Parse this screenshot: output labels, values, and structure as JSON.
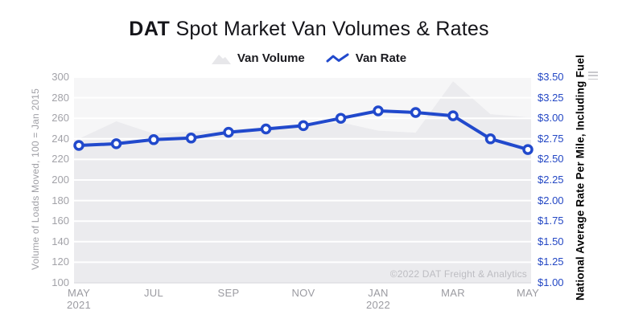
{
  "title": {
    "brand": "DAT",
    "rest": "Spot Market Van Volumes & Rates"
  },
  "legend": [
    {
      "label": "Van Volume",
      "icon": "area-icon"
    },
    {
      "label": "Van Rate",
      "icon": "line-icon"
    }
  ],
  "watermark": "©2022 DAT Freight & Analytics",
  "colors": {
    "rate_line": "#2149cc",
    "rate_axis_text": "#2347c4",
    "volume_fill": "#ebebee",
    "plot_background": "#f6f6f7",
    "gridline": "#ffffff",
    "baseline": "#e0e0e4"
  },
  "chart_data": {
    "type": "line",
    "title": "DAT Spot Market Van Volumes & Rates",
    "x": [
      "MAY 2021",
      "JUN 2021",
      "JUL 2021",
      "AUG 2021",
      "SEP 2021",
      "OCT 2021",
      "NOV 2021",
      "DEC 2021",
      "JAN 2022",
      "FEB 2022",
      "MAR 2022",
      "APR 2022",
      "MAY 2022"
    ],
    "x_tick_labels": [
      {
        "month_index": 0,
        "lines": [
          "MAY",
          "2021"
        ]
      },
      {
        "month_index": 2,
        "lines": [
          "JUL"
        ]
      },
      {
        "month_index": 4,
        "lines": [
          "SEP"
        ]
      },
      {
        "month_index": 6,
        "lines": [
          "NOV"
        ]
      },
      {
        "month_index": 8,
        "lines": [
          "JAN",
          "2022"
        ]
      },
      {
        "month_index": 10,
        "lines": [
          "MAR"
        ]
      },
      {
        "month_index": 12,
        "lines": [
          "MAY"
        ]
      }
    ],
    "series": [
      {
        "name": "Van Volume",
        "type": "area",
        "axis": "left",
        "values": [
          240,
          257,
          245,
          247,
          249,
          251,
          253,
          256,
          248,
          246,
          296,
          264,
          261
        ]
      },
      {
        "name": "Van Rate",
        "type": "line",
        "axis": "right",
        "values": [
          2.67,
          2.69,
          2.74,
          2.76,
          2.83,
          2.87,
          2.91,
          3.0,
          3.09,
          3.07,
          3.03,
          2.75,
          2.62
        ]
      }
    ],
    "left_axis": {
      "label": "Volume of Loads Moved, 100 = Jan 2015",
      "min": 100,
      "max": 300,
      "tick_step": 20,
      "ticks": [
        "300",
        "280",
        "260",
        "240",
        "220",
        "200",
        "180",
        "160",
        "140",
        "120",
        "100"
      ]
    },
    "right_axis": {
      "label": "National Average Rate Per Mile, Including Fuel",
      "min": 1.0,
      "max": 3.5,
      "tick_step": 0.25,
      "ticks": [
        "$3.50",
        "$3.25",
        "$3.00",
        "$2.75",
        "$2.50",
        "$2.25",
        "$2.00",
        "$1.75",
        "$1.50",
        "$1.25",
        "$1.00"
      ]
    },
    "grid": "horizontal",
    "legend_position": "top"
  }
}
